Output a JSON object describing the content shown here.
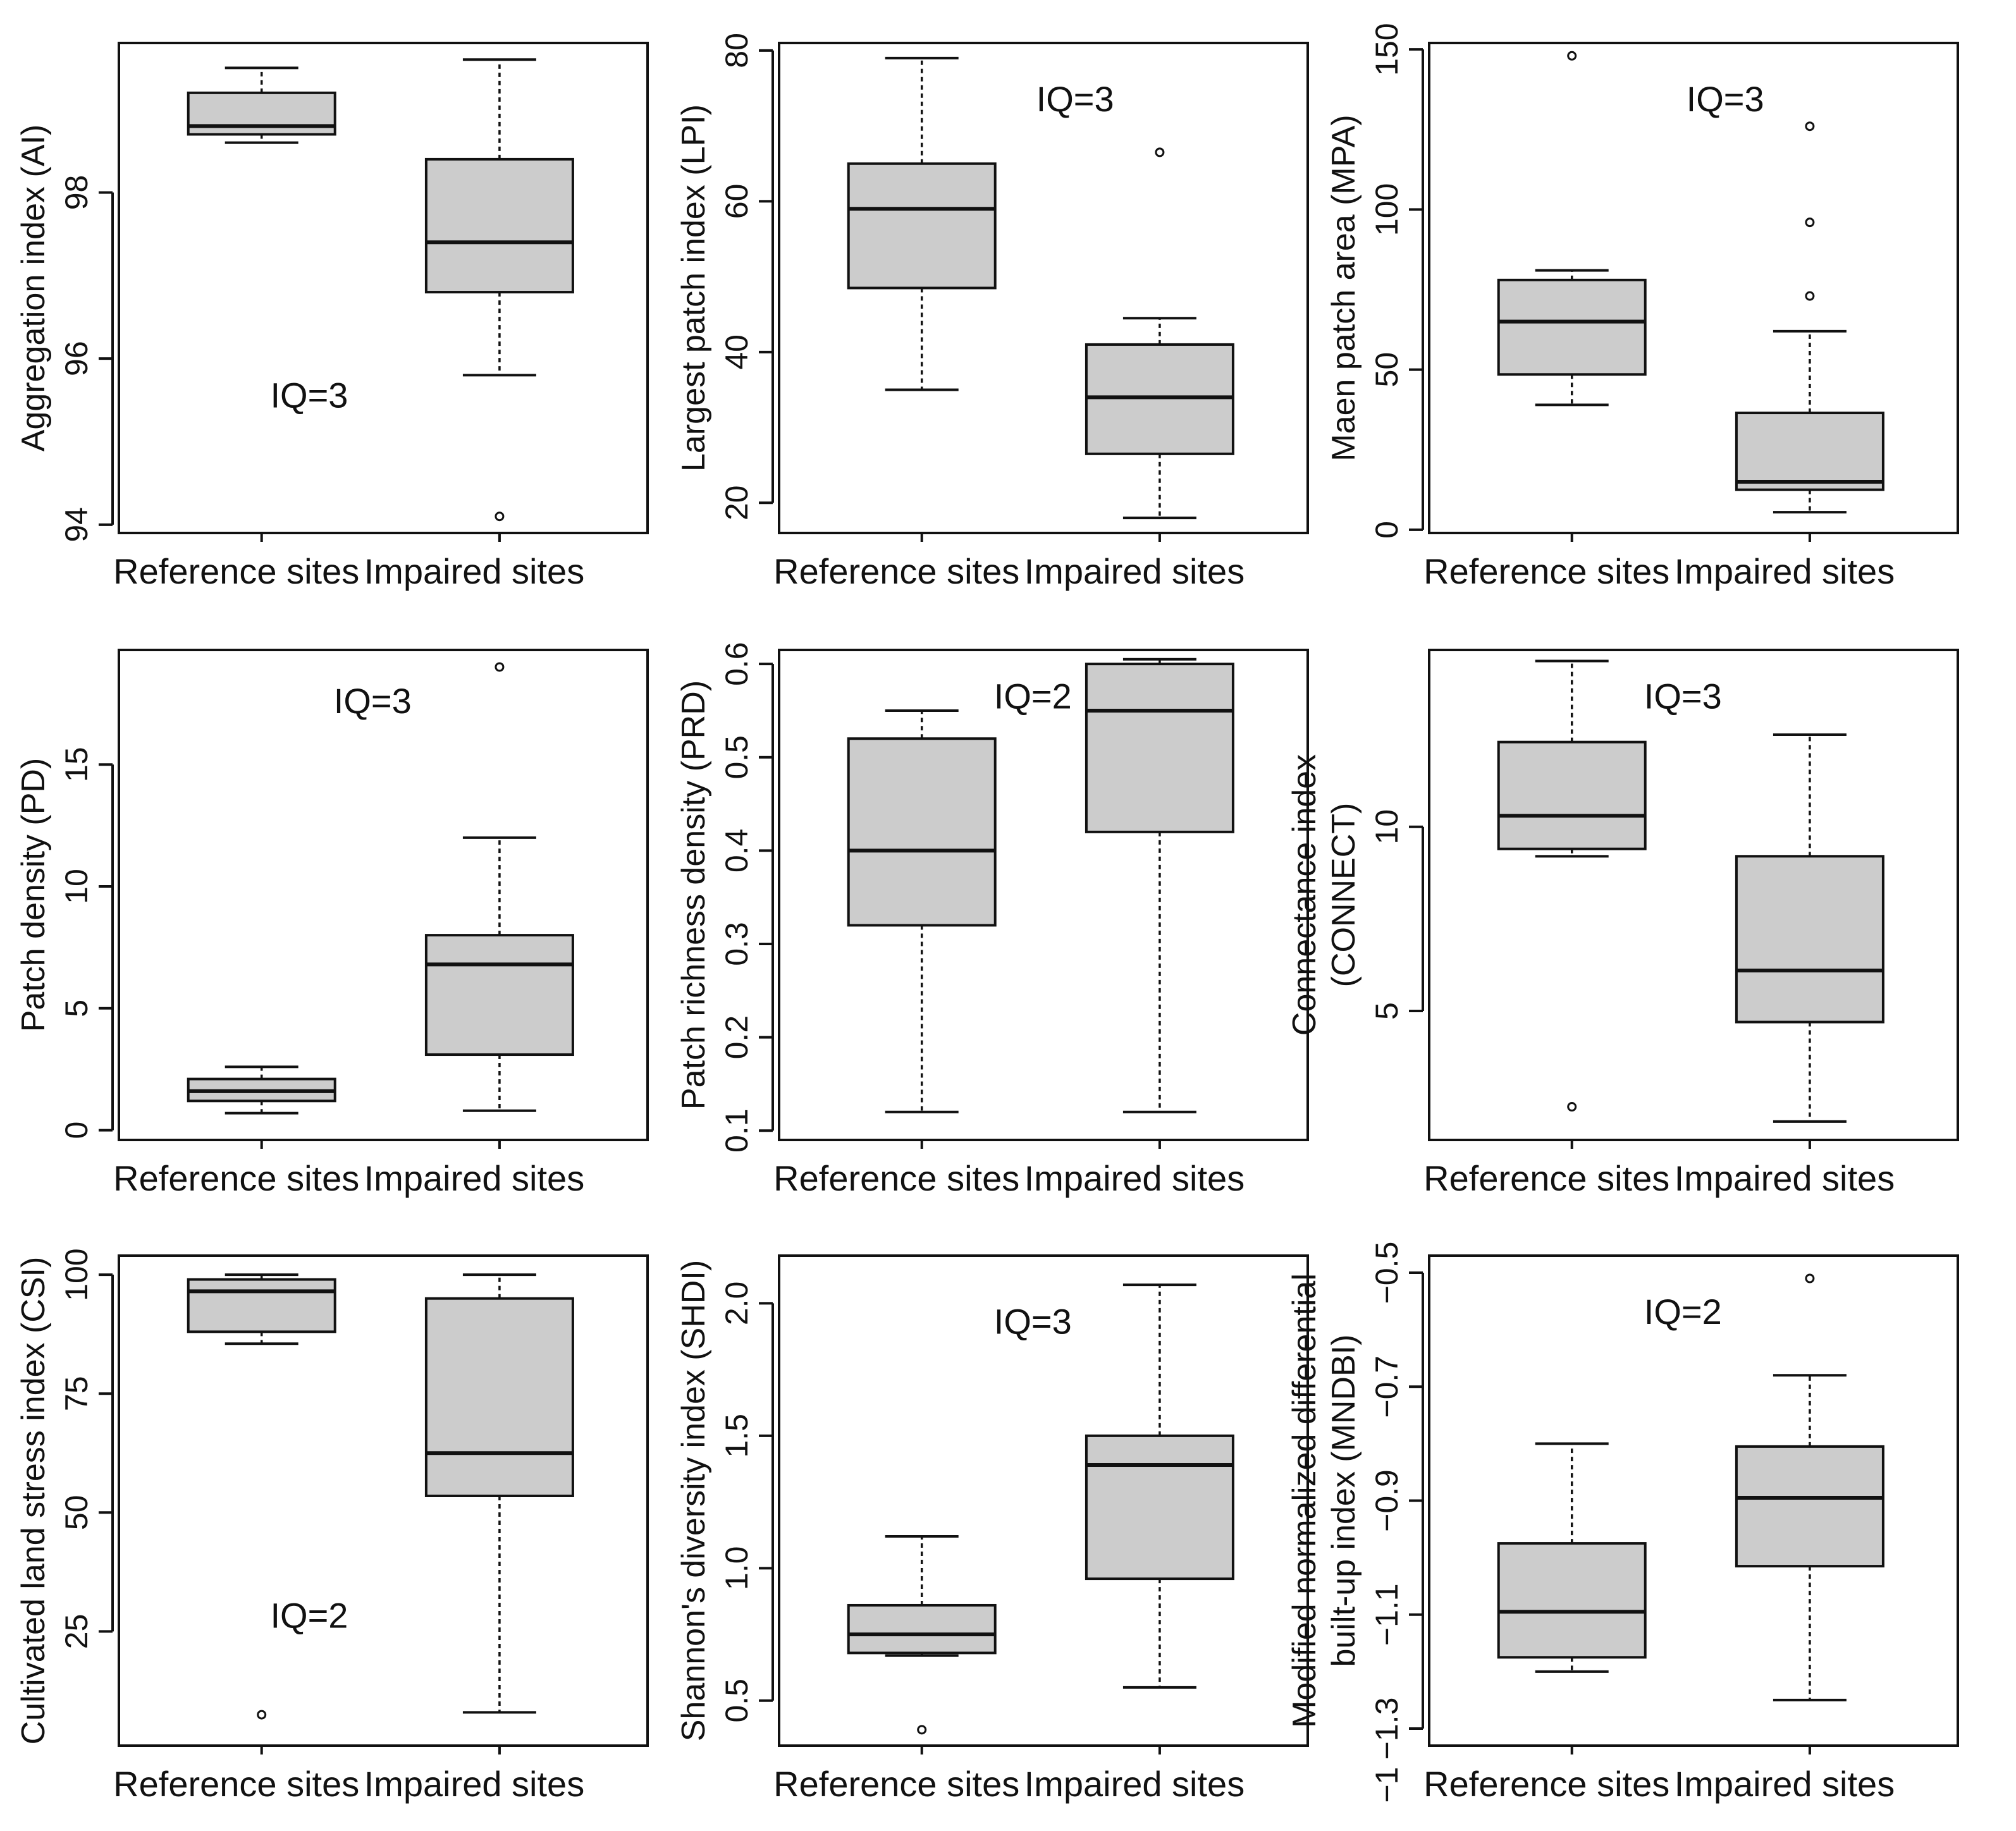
{
  "chart_data": [
    {
      "type": "box",
      "ylabel": [
        "Aggregation index (AI)"
      ],
      "annotation": "IQ=3",
      "categories": [
        "Reference sites",
        "Impaired sites"
      ],
      "ylim": [
        93.9,
        99.8
      ],
      "yticks": [
        94,
        96,
        98
      ],
      "tick_labels": [
        "94",
        "96",
        "98"
      ],
      "boxes": [
        {
          "q1": 98.7,
          "median": 98.8,
          "q3": 99.2,
          "whisker_low": 98.6,
          "whisker_high": 99.5,
          "outliers": []
        },
        {
          "q1": 96.8,
          "median": 97.4,
          "q3": 98.4,
          "whisker_low": 95.8,
          "whisker_high": 99.6,
          "outliers": [
            94.1
          ]
        }
      ]
    },
    {
      "type": "box",
      "ylabel": [
        "Largest patch index (LPI)"
      ],
      "annotation": "IQ=3",
      "categories": [
        "Reference sites",
        "Impaired sites"
      ],
      "ylim": [
        16,
        81
      ],
      "yticks": [
        20,
        40,
        60,
        80
      ],
      "tick_labels": [
        "20",
        "40",
        "60",
        "80"
      ],
      "boxes": [
        {
          "q1": 48.5,
          "median": 59,
          "q3": 65,
          "whisker_low": 35,
          "whisker_high": 79,
          "outliers": []
        },
        {
          "q1": 26.5,
          "median": 34,
          "q3": 41,
          "whisker_low": 18,
          "whisker_high": 44.5,
          "outliers": [
            66.5
          ]
        }
      ]
    },
    {
      "type": "box",
      "ylabel": [
        "Maen patch area (MPA)"
      ],
      "annotation": "IQ=3",
      "categories": [
        "Reference sites",
        "Impaired sites"
      ],
      "ylim": [
        -1,
        152
      ],
      "yticks": [
        0,
        50,
        100,
        150
      ],
      "tick_labels": [
        "0",
        "50",
        "100",
        "150"
      ],
      "boxes": [
        {
          "q1": 48.5,
          "median": 65,
          "q3": 78,
          "whisker_low": 39,
          "whisker_high": 81,
          "outliers": [
            148
          ]
        },
        {
          "q1": 12.5,
          "median": 15,
          "q3": 36.5,
          "whisker_low": 5.5,
          "whisker_high": 62,
          "outliers": [
            73,
            96,
            126
          ]
        }
      ]
    },
    {
      "type": "box",
      "ylabel": [
        "Patch density (PD)"
      ],
      "annotation": "IQ=3",
      "categories": [
        "Reference sites",
        "Impaired sites"
      ],
      "ylim": [
        -0.4,
        19.7
      ],
      "yticks": [
        0,
        5,
        10,
        15
      ],
      "tick_labels": [
        "0",
        "5",
        "10",
        "15"
      ],
      "boxes": [
        {
          "q1": 1.2,
          "median": 1.6,
          "q3": 2.1,
          "whisker_low": 0.7,
          "whisker_high": 2.6,
          "outliers": []
        },
        {
          "q1": 3.1,
          "median": 6.8,
          "q3": 8,
          "whisker_low": 0.8,
          "whisker_high": 12,
          "outliers": [
            19
          ]
        }
      ]
    },
    {
      "type": "box",
      "ylabel": [
        "Patch richness density (PRD)"
      ],
      "annotation": "IQ=2",
      "categories": [
        "Reference sites",
        "Impaired sites"
      ],
      "ylim": [
        0.09,
        0.615
      ],
      "yticks": [
        0.1,
        0.2,
        0.3,
        0.4,
        0.5,
        0.6
      ],
      "tick_labels": [
        "0.1",
        "0.2",
        "0.3",
        "0.4",
        "0.5",
        "0.6"
      ],
      "boxes": [
        {
          "q1": 0.32,
          "median": 0.4,
          "q3": 0.52,
          "whisker_low": 0.12,
          "whisker_high": 0.55,
          "outliers": []
        },
        {
          "q1": 0.42,
          "median": 0.55,
          "q3": 0.6,
          "whisker_low": 0.12,
          "whisker_high": 0.605,
          "outliers": []
        }
      ]
    },
    {
      "type": "box",
      "ylabel": [
        "Connectance index",
        "(CONNECT)"
      ],
      "annotation": "IQ=3",
      "categories": [
        "Reference sites",
        "Impaired sites"
      ],
      "ylim": [
        1.5,
        14.8
      ],
      "yticks": [
        5,
        10
      ],
      "tick_labels": [
        "5",
        "10"
      ],
      "boxes": [
        {
          "q1": 9.4,
          "median": 10.3,
          "q3": 12.3,
          "whisker_low": 9.2,
          "whisker_high": 14.5,
          "outliers": [
            2.4
          ]
        },
        {
          "q1": 4.7,
          "median": 6.1,
          "q3": 9.2,
          "whisker_low": 2,
          "whisker_high": 12.5,
          "outliers": []
        }
      ]
    },
    {
      "type": "box",
      "ylabel": [
        "Cultivated land stress index (CSI)"
      ],
      "annotation": "IQ=2",
      "categories": [
        "Reference sites",
        "Impaired sites"
      ],
      "ylim": [
        1,
        104
      ],
      "yticks": [
        25,
        50,
        75,
        100
      ],
      "tick_labels": [
        "25",
        "50",
        "75",
        "100"
      ],
      "boxes": [
        {
          "q1": 88,
          "median": 96.5,
          "q3": 99,
          "whisker_low": 85.5,
          "whisker_high": 100,
          "outliers": [
            7.5
          ]
        },
        {
          "q1": 53.5,
          "median": 62.5,
          "q3": 95,
          "whisker_low": 8,
          "whisker_high": 100,
          "outliers": []
        }
      ]
    },
    {
      "type": "box",
      "ylabel": [
        "Shannon's diversity index (SHDI)"
      ],
      "annotation": "IQ=3",
      "categories": [
        "Reference sites",
        "Impaired sites"
      ],
      "ylim": [
        0.33,
        2.18
      ],
      "yticks": [
        0.5,
        1.0,
        1.5,
        2.0
      ],
      "tick_labels": [
        "0.5",
        "1.0",
        "1.5",
        "2.0"
      ],
      "boxes": [
        {
          "q1": 0.68,
          "median": 0.75,
          "q3": 0.86,
          "whisker_low": 0.67,
          "whisker_high": 1.12,
          "outliers": [
            0.39
          ]
        },
        {
          "q1": 0.96,
          "median": 1.39,
          "q3": 1.5,
          "whisker_low": 0.55,
          "whisker_high": 2.07,
          "outliers": []
        }
      ]
    },
    {
      "type": "box",
      "ylabel": [
        "Modified normalized differential",
        "built-up index (MNDBI)"
      ],
      "annotation": "IQ=2",
      "categories": [
        "Reference sites",
        "Impaired sites"
      ],
      "ylim": [
        -1.33,
        -0.47
      ],
      "yticks": [
        -1.3,
        -1.1,
        -0.9,
        -0.7,
        -0.5
      ],
      "tick_labels": [
        "−1.3",
        "−1.1",
        "−0.9",
        "−0.7",
        "−0.5"
      ],
      "extra_tick_labels": [
        "−1"
      ],
      "boxes": [
        {
          "q1": -1.175,
          "median": -1.095,
          "q3": -0.975,
          "whisker_low": -1.2,
          "whisker_high": -0.8,
          "outliers": []
        },
        {
          "q1": -1.015,
          "median": -0.895,
          "q3": -0.805,
          "whisker_low": -1.25,
          "whisker_high": -0.68,
          "outliers": [
            -0.51
          ]
        }
      ]
    }
  ]
}
